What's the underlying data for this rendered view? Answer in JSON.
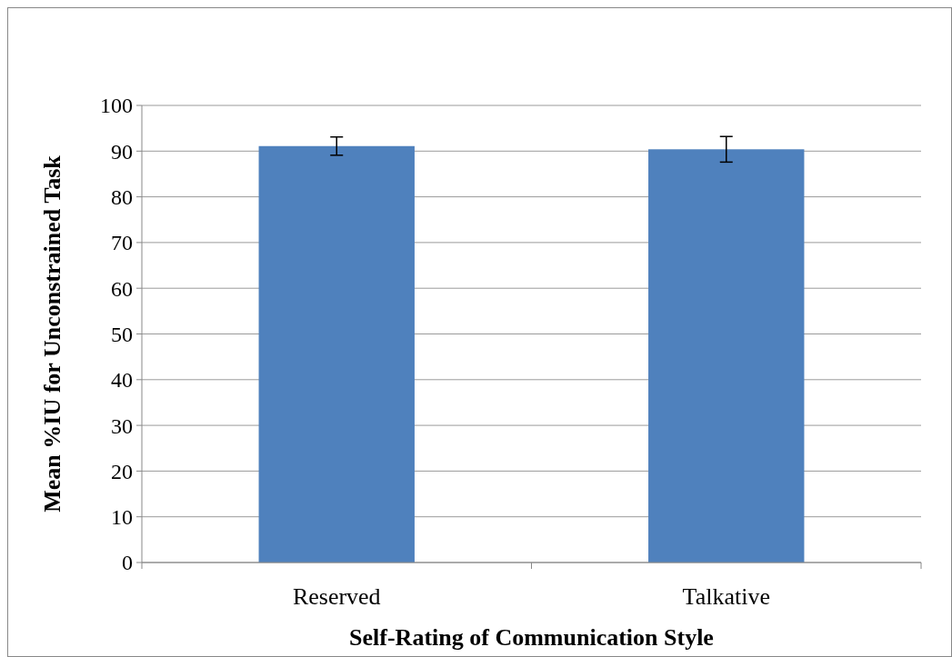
{
  "chart_data": {
    "type": "bar",
    "xlabel": "Self-Rating of Communication Style",
    "ylabel": "Mean %IU for Unconstrained Task",
    "categories": [
      "Reserved",
      "Talkative"
    ],
    "values": [
      91.1,
      90.4
    ],
    "errors": [
      2.0,
      2.8
    ],
    "color": "#4f81bd",
    "ylim": [
      0,
      100
    ],
    "yticks": [
      0,
      10,
      20,
      30,
      40,
      50,
      60,
      70,
      80,
      90,
      100
    ],
    "grid": "y"
  }
}
